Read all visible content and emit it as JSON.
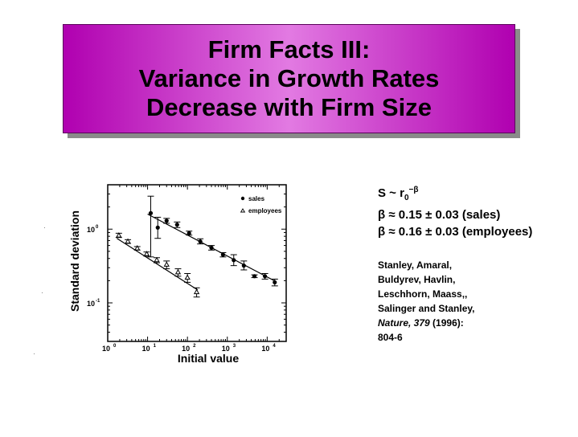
{
  "title": {
    "line1": "Firm Facts III:",
    "line2": "Variance in Growth Rates",
    "line3": "Decrease with Firm Size"
  },
  "equations": {
    "scaling_s": "S ~ r",
    "scaling_sub": "0",
    "scaling_sup": "−β",
    "beta_sales": "β ≈ 0.15 ± 0.03 (sales)",
    "beta_employees": "β ≈ 0.16 ± 0.03 (employees)"
  },
  "reference": {
    "line1": "Stanley, Amaral,",
    "line2": "Buldyrev, Havlin,",
    "line3": "Leschhorn, Maass,,",
    "line4": "Salinger and Stanley,",
    "journal": "Nature",
    "volume": ", 379",
    "year": " (1996):",
    "pages": "804-6"
  },
  "chart_data": {
    "type": "scatter",
    "xlabel": "Initial value",
    "ylabel": "Standard deviation",
    "x_scale": "log",
    "y_scale": "log",
    "xlim": [
      1,
      30000
    ],
    "ylim": [
      0.03,
      4
    ],
    "x_ticks": [
      {
        "base": "10",
        "exp": "0",
        "value": 1
      },
      {
        "base": "10",
        "exp": "1",
        "value": 10
      },
      {
        "base": "10",
        "exp": "2",
        "value": 100
      },
      {
        "base": "10",
        "exp": "3",
        "value": 1000
      },
      {
        "base": "10",
        "exp": "4",
        "value": 10000
      }
    ],
    "y_ticks": [
      {
        "base": "10",
        "exp": "0",
        "value": 1
      },
      {
        "base": "10",
        "exp": "-1",
        "value": 0.1
      }
    ],
    "legend_position": "top-right",
    "series": [
      {
        "name": "sales",
        "marker": "circle",
        "points": [
          {
            "x": 12,
            "y": 1.65,
            "lo": 0.42,
            "hi": 2.8
          },
          {
            "x": 18,
            "y": 1.05,
            "lo": 0.75,
            "hi": 1.45
          },
          {
            "x": 30,
            "y": 1.3,
            "lo": 1.2,
            "hi": 1.4
          },
          {
            "x": 55,
            "y": 1.15,
            "lo": 1.05,
            "hi": 1.25
          },
          {
            "x": 110,
            "y": 0.88,
            "lo": 0.83,
            "hi": 0.94
          },
          {
            "x": 210,
            "y": 0.68,
            "lo": 0.63,
            "hi": 0.74
          },
          {
            "x": 400,
            "y": 0.56,
            "lo": 0.52,
            "hi": 0.6
          },
          {
            "x": 780,
            "y": 0.45,
            "lo": 0.42,
            "hi": 0.48
          },
          {
            "x": 1450,
            "y": 0.38,
            "lo": 0.32,
            "hi": 0.45
          },
          {
            "x": 2600,
            "y": 0.32,
            "lo": 0.28,
            "hi": 0.37
          },
          {
            "x": 4800,
            "y": 0.23,
            "lo": 0.22,
            "hi": 0.24
          },
          {
            "x": 8800,
            "y": 0.23,
            "lo": 0.21,
            "hi": 0.25
          },
          {
            "x": 15500,
            "y": 0.19,
            "lo": 0.17,
            "hi": 0.21
          }
        ],
        "fit": [
          [
            10,
            1.6
          ],
          [
            15000,
            0.2
          ]
        ]
      },
      {
        "name": "employees",
        "marker": "triangle",
        "points": [
          {
            "x": 1.9,
            "y": 0.82,
            "lo": 0.77,
            "hi": 0.88
          },
          {
            "x": 3.2,
            "y": 0.68,
            "lo": 0.64,
            "hi": 0.72
          },
          {
            "x": 5.5,
            "y": 0.55,
            "lo": 0.52,
            "hi": 0.58
          },
          {
            "x": 9.5,
            "y": 0.46,
            "lo": 0.43,
            "hi": 0.49
          },
          {
            "x": 17,
            "y": 0.38,
            "lo": 0.35,
            "hi": 0.41
          },
          {
            "x": 30,
            "y": 0.33,
            "lo": 0.29,
            "hi": 0.37
          },
          {
            "x": 58,
            "y": 0.26,
            "lo": 0.23,
            "hi": 0.29
          },
          {
            "x": 100,
            "y": 0.22,
            "lo": 0.19,
            "hi": 0.25
          },
          {
            "x": 170,
            "y": 0.14,
            "lo": 0.12,
            "hi": 0.16
          }
        ],
        "fit": [
          [
            1.7,
            0.75
          ],
          [
            180,
            0.15
          ]
        ]
      }
    ]
  }
}
